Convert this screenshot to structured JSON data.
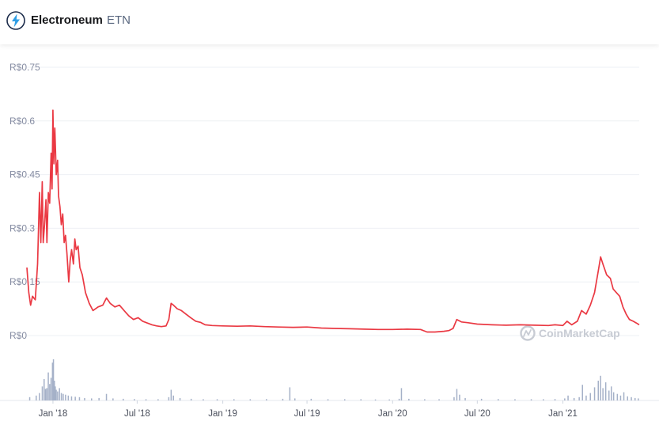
{
  "header": {
    "name": "Electroneum",
    "symbol": "ETN",
    "logo_icon": "electroneum-logo-icon"
  },
  "watermark": {
    "text": "CoinMarketCap",
    "icon": "coinmarketcap-logo-icon"
  },
  "chart_data": {
    "type": "line",
    "currency_prefix": "R$",
    "y_ticks": [
      "R$0",
      "R$0.15",
      "R$0.3",
      "R$0.45",
      "R$0.6",
      "R$0.75"
    ],
    "y_tick_values": [
      0,
      0.15,
      0.3,
      0.45,
      0.6,
      0.75
    ],
    "ylim": [
      0,
      0.75
    ],
    "x_ticks": [
      "Jan '18",
      "Jul '18",
      "Jan '19",
      "Jul '19",
      "Jan '20",
      "Jul '20",
      "Jan '21"
    ],
    "x_tick_dates": [
      "2018-01-01",
      "2018-07-01",
      "2019-01-01",
      "2019-07-01",
      "2020-01-01",
      "2020-07-01",
      "2021-01-01"
    ],
    "xlim": [
      "2017-11-06",
      "2021-06-14"
    ],
    "grid": true,
    "series": [
      {
        "color": "#ea3943",
        "points": [
          [
            "2017-11-06",
            0.19
          ],
          [
            "2017-11-10",
            0.12
          ],
          [
            "2017-11-14",
            0.085
          ],
          [
            "2017-11-18",
            0.11
          ],
          [
            "2017-11-24",
            0.1
          ],
          [
            "2017-11-29",
            0.2
          ],
          [
            "2017-12-03",
            0.4
          ],
          [
            "2017-12-06",
            0.26
          ],
          [
            "2017-12-09",
            0.43
          ],
          [
            "2017-12-11",
            0.26
          ],
          [
            "2017-12-14",
            0.31
          ],
          [
            "2017-12-17",
            0.38
          ],
          [
            "2017-12-19",
            0.26
          ],
          [
            "2017-12-22",
            0.4
          ],
          [
            "2017-12-25",
            0.37
          ],
          [
            "2017-12-28",
            0.51
          ],
          [
            "2017-12-30",
            0.41
          ],
          [
            "2018-01-01",
            0.63
          ],
          [
            "2018-01-03",
            0.48
          ],
          [
            "2018-01-05",
            0.58
          ],
          [
            "2018-01-08",
            0.45
          ],
          [
            "2018-01-11",
            0.49
          ],
          [
            "2018-01-13",
            0.39
          ],
          [
            "2018-01-16",
            0.36
          ],
          [
            "2018-01-19",
            0.31
          ],
          [
            "2018-01-22",
            0.34
          ],
          [
            "2018-01-25",
            0.26
          ],
          [
            "2018-01-28",
            0.28
          ],
          [
            "2018-01-31",
            0.23
          ],
          [
            "2018-02-04",
            0.15
          ],
          [
            "2018-02-07",
            0.21
          ],
          [
            "2018-02-10",
            0.24
          ],
          [
            "2018-02-14",
            0.2
          ],
          [
            "2018-02-17",
            0.27
          ],
          [
            "2018-02-20",
            0.24
          ],
          [
            "2018-02-24",
            0.25
          ],
          [
            "2018-02-28",
            0.19
          ],
          [
            "2018-03-05",
            0.17
          ],
          [
            "2018-03-12",
            0.12
          ],
          [
            "2018-03-20",
            0.09
          ],
          [
            "2018-03-28",
            0.07
          ],
          [
            "2018-04-08",
            0.08
          ],
          [
            "2018-04-18",
            0.085
          ],
          [
            "2018-04-26",
            0.105
          ],
          [
            "2018-05-04",
            0.09
          ],
          [
            "2018-05-14",
            0.08
          ],
          [
            "2018-05-24",
            0.085
          ],
          [
            "2018-06-03",
            0.07
          ],
          [
            "2018-06-13",
            0.055
          ],
          [
            "2018-06-23",
            0.045
          ],
          [
            "2018-07-03",
            0.05
          ],
          [
            "2018-07-13",
            0.04
          ],
          [
            "2018-07-23",
            0.035
          ],
          [
            "2018-08-02",
            0.03
          ],
          [
            "2018-08-12",
            0.027
          ],
          [
            "2018-08-22",
            0.025
          ],
          [
            "2018-09-01",
            0.027
          ],
          [
            "2018-09-07",
            0.045
          ],
          [
            "2018-09-12",
            0.09
          ],
          [
            "2018-09-17",
            0.085
          ],
          [
            "2018-09-25",
            0.075
          ],
          [
            "2018-10-04",
            0.07
          ],
          [
            "2018-10-14",
            0.06
          ],
          [
            "2018-10-24",
            0.05
          ],
          [
            "2018-11-04",
            0.04
          ],
          [
            "2018-11-14",
            0.037
          ],
          [
            "2018-11-24",
            0.03
          ],
          [
            "2018-12-09",
            0.028
          ],
          [
            "2019-01-01",
            0.027
          ],
          [
            "2019-02-01",
            0.026
          ],
          [
            "2019-03-01",
            0.027
          ],
          [
            "2019-04-01",
            0.025
          ],
          [
            "2019-05-01",
            0.024
          ],
          [
            "2019-06-01",
            0.023
          ],
          [
            "2019-07-01",
            0.024
          ],
          [
            "2019-08-01",
            0.021
          ],
          [
            "2019-09-01",
            0.02
          ],
          [
            "2019-10-01",
            0.019
          ],
          [
            "2019-11-01",
            0.018
          ],
          [
            "2019-12-01",
            0.017
          ],
          [
            "2020-01-01",
            0.017
          ],
          [
            "2020-02-01",
            0.018
          ],
          [
            "2020-03-01",
            0.017
          ],
          [
            "2020-03-15",
            0.01
          ],
          [
            "2020-04-01",
            0.01
          ],
          [
            "2020-04-20",
            0.012
          ],
          [
            "2020-05-01",
            0.014
          ],
          [
            "2020-05-10",
            0.02
          ],
          [
            "2020-05-18",
            0.045
          ],
          [
            "2020-05-28",
            0.038
          ],
          [
            "2020-06-10",
            0.036
          ],
          [
            "2020-07-01",
            0.032
          ],
          [
            "2020-08-01",
            0.03
          ],
          [
            "2020-09-01",
            0.029
          ],
          [
            "2020-10-01",
            0.03
          ],
          [
            "2020-11-01",
            0.029
          ],
          [
            "2020-12-01",
            0.028
          ],
          [
            "2020-12-15",
            0.03
          ],
          [
            "2021-01-01",
            0.028
          ],
          [
            "2021-01-10",
            0.04
          ],
          [
            "2021-01-20",
            0.03
          ],
          [
            "2021-02-01",
            0.04
          ],
          [
            "2021-02-10",
            0.07
          ],
          [
            "2021-02-20",
            0.06
          ],
          [
            "2021-03-01",
            0.085
          ],
          [
            "2021-03-10",
            0.12
          ],
          [
            "2021-03-18",
            0.18
          ],
          [
            "2021-03-23",
            0.22
          ],
          [
            "2021-03-28",
            0.2
          ],
          [
            "2021-04-05",
            0.17
          ],
          [
            "2021-04-13",
            0.16
          ],
          [
            "2021-04-19",
            0.13
          ],
          [
            "2021-04-26",
            0.12
          ],
          [
            "2021-05-03",
            0.11
          ],
          [
            "2021-05-10",
            0.08
          ],
          [
            "2021-05-17",
            0.06
          ],
          [
            "2021-05-24",
            0.045
          ],
          [
            "2021-06-01",
            0.04
          ],
          [
            "2021-06-08",
            0.035
          ],
          [
            "2021-06-14",
            0.03
          ]
        ]
      }
    ],
    "volume": {
      "color": "#a5b1c8",
      "bars": [
        [
          "2017-11-12",
          0.08
        ],
        [
          "2017-11-26",
          0.12
        ],
        [
          "2017-12-03",
          0.18
        ],
        [
          "2017-12-09",
          0.34
        ],
        [
          "2017-12-13",
          0.52
        ],
        [
          "2017-12-16",
          0.28
        ],
        [
          "2017-12-19",
          0.3
        ],
        [
          "2017-12-22",
          0.68
        ],
        [
          "2017-12-25",
          0.4
        ],
        [
          "2017-12-28",
          0.55
        ],
        [
          "2017-12-31",
          0.92
        ],
        [
          "2018-01-02",
          1.0
        ],
        [
          "2018-01-04",
          0.48
        ],
        [
          "2018-01-06",
          0.34
        ],
        [
          "2018-01-08",
          0.26
        ],
        [
          "2018-01-11",
          0.22
        ],
        [
          "2018-01-15",
          0.3
        ],
        [
          "2018-01-19",
          0.18
        ],
        [
          "2018-01-23",
          0.16
        ],
        [
          "2018-01-28",
          0.14
        ],
        [
          "2018-02-03",
          0.12
        ],
        [
          "2018-02-10",
          0.1
        ],
        [
          "2018-02-18",
          0.09
        ],
        [
          "2018-02-27",
          0.08
        ],
        [
          "2018-03-10",
          0.06
        ],
        [
          "2018-03-25",
          0.05
        ],
        [
          "2018-04-10",
          0.06
        ],
        [
          "2018-04-26",
          0.16
        ],
        [
          "2018-05-10",
          0.05
        ],
        [
          "2018-06-01",
          0.04
        ],
        [
          "2018-06-25",
          0.035
        ],
        [
          "2018-07-20",
          0.03
        ],
        [
          "2018-08-15",
          0.03
        ],
        [
          "2018-09-07",
          0.08
        ],
        [
          "2018-09-12",
          0.26
        ],
        [
          "2018-09-17",
          0.12
        ],
        [
          "2018-10-01",
          0.06
        ],
        [
          "2018-10-25",
          0.04
        ],
        [
          "2018-11-20",
          0.03
        ],
        [
          "2018-12-20",
          0.03
        ],
        [
          "2019-01-25",
          0.03
        ],
        [
          "2019-03-01",
          0.03
        ],
        [
          "2019-04-05",
          0.035
        ],
        [
          "2019-05-10",
          0.04
        ],
        [
          "2019-05-25",
          0.32
        ],
        [
          "2019-06-05",
          0.05
        ],
        [
          "2019-07-10",
          0.04
        ],
        [
          "2019-08-15",
          0.03
        ],
        [
          "2019-09-20",
          0.03
        ],
        [
          "2019-10-25",
          0.03
        ],
        [
          "2019-11-25",
          0.025
        ],
        [
          "2019-12-25",
          0.025
        ],
        [
          "2020-01-15",
          0.04
        ],
        [
          "2020-01-20",
          0.3
        ],
        [
          "2020-02-05",
          0.04
        ],
        [
          "2020-03-10",
          0.03
        ],
        [
          "2020-04-10",
          0.03
        ],
        [
          "2020-05-12",
          0.08
        ],
        [
          "2020-05-18",
          0.28
        ],
        [
          "2020-05-24",
          0.14
        ],
        [
          "2020-06-05",
          0.06
        ],
        [
          "2020-07-10",
          0.04
        ],
        [
          "2020-08-15",
          0.035
        ],
        [
          "2020-09-20",
          0.03
        ],
        [
          "2020-10-25",
          0.03
        ],
        [
          "2020-11-20",
          0.03
        ],
        [
          "2020-12-15",
          0.035
        ],
        [
          "2021-01-05",
          0.05
        ],
        [
          "2021-01-12",
          0.12
        ],
        [
          "2021-01-25",
          0.06
        ],
        [
          "2021-02-05",
          0.08
        ],
        [
          "2021-02-12",
          0.38
        ],
        [
          "2021-02-20",
          0.12
        ],
        [
          "2021-03-01",
          0.18
        ],
        [
          "2021-03-10",
          0.32
        ],
        [
          "2021-03-18",
          0.48
        ],
        [
          "2021-03-23",
          0.6
        ],
        [
          "2021-03-28",
          0.3
        ],
        [
          "2021-04-03",
          0.44
        ],
        [
          "2021-04-10",
          0.24
        ],
        [
          "2021-04-15",
          0.34
        ],
        [
          "2021-04-20",
          0.2
        ],
        [
          "2021-04-28",
          0.16
        ],
        [
          "2021-05-05",
          0.12
        ],
        [
          "2021-05-12",
          0.2
        ],
        [
          "2021-05-20",
          0.1
        ],
        [
          "2021-05-28",
          0.08
        ],
        [
          "2021-06-05",
          0.06
        ],
        [
          "2021-06-12",
          0.05
        ]
      ]
    }
  }
}
